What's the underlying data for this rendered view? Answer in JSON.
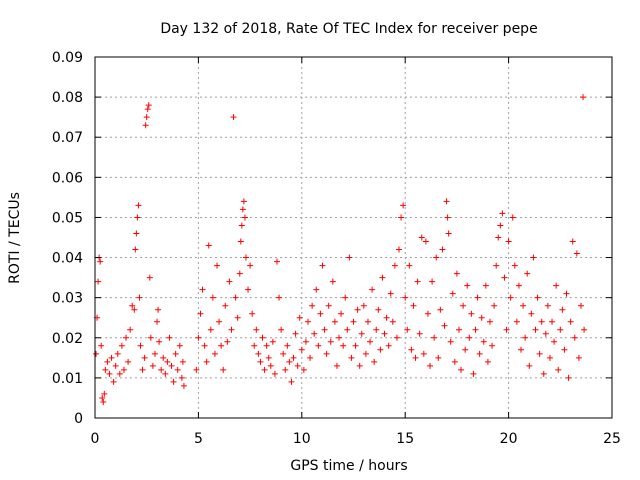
{
  "chart_data": {
    "type": "scatter",
    "title": "Day 132 of 2018, Rate Of TEC Index for receiver pepe",
    "xlabel": "GPS time / hours",
    "ylabel": "ROTI / TECUs",
    "xlim": [
      0,
      25
    ],
    "ylim": [
      0,
      0.09
    ],
    "xticks": [
      0,
      5,
      10,
      15,
      20,
      25
    ],
    "xtick_labels": [
      "0",
      "5",
      "10",
      "15",
      "20",
      "25"
    ],
    "yticks": [
      0,
      0.01,
      0.02,
      0.03,
      0.04,
      0.05,
      0.06,
      0.07,
      0.08,
      0.09
    ],
    "ytick_labels": [
      "0",
      "0.01",
      "0.02",
      "0.03",
      "0.04",
      "0.05",
      "0.06",
      "0.07",
      "0.08",
      "0.09"
    ],
    "grid": true,
    "marker": "+",
    "color": "#ff0000",
    "series": [
      {
        "name": "ROTI",
        "points": [
          [
            0.05,
            0.016
          ],
          [
            0.1,
            0.025
          ],
          [
            0.15,
            0.034
          ],
          [
            0.2,
            0.04
          ],
          [
            0.25,
            0.039
          ],
          [
            0.3,
            0.018
          ],
          [
            0.35,
            0.005
          ],
          [
            0.4,
            0.004
          ],
          [
            0.45,
            0.006
          ],
          [
            0.5,
            0.012
          ],
          [
            0.6,
            0.014
          ],
          [
            0.7,
            0.011
          ],
          [
            0.8,
            0.015
          ],
          [
            0.9,
            0.009
          ],
          [
            1.0,
            0.013
          ],
          [
            1.1,
            0.016
          ],
          [
            1.2,
            0.011
          ],
          [
            1.3,
            0.018
          ],
          [
            1.4,
            0.012
          ],
          [
            1.5,
            0.02
          ],
          [
            1.6,
            0.014
          ],
          [
            1.7,
            0.022
          ],
          [
            1.8,
            0.028
          ],
          [
            1.9,
            0.027
          ],
          [
            1.95,
            0.042
          ],
          [
            2.0,
            0.046
          ],
          [
            2.05,
            0.05
          ],
          [
            2.1,
            0.053
          ],
          [
            2.15,
            0.03
          ],
          [
            2.2,
            0.018
          ],
          [
            2.3,
            0.012
          ],
          [
            2.4,
            0.015
          ],
          [
            2.45,
            0.073
          ],
          [
            2.5,
            0.075
          ],
          [
            2.55,
            0.077
          ],
          [
            2.6,
            0.078
          ],
          [
            2.65,
            0.035
          ],
          [
            2.7,
            0.02
          ],
          [
            2.8,
            0.013
          ],
          [
            2.9,
            0.016
          ],
          [
            3.0,
            0.024
          ],
          [
            3.05,
            0.027
          ],
          [
            3.1,
            0.019
          ],
          [
            3.2,
            0.012
          ],
          [
            3.3,
            0.015
          ],
          [
            3.4,
            0.011
          ],
          [
            3.5,
            0.014
          ],
          [
            3.6,
            0.02
          ],
          [
            3.7,
            0.013
          ],
          [
            3.8,
            0.009
          ],
          [
            3.9,
            0.016
          ],
          [
            4.0,
            0.012
          ],
          [
            4.1,
            0.018
          ],
          [
            4.2,
            0.01
          ],
          [
            4.25,
            0.014
          ],
          [
            4.3,
            0.008
          ],
          [
            4.9,
            0.012
          ],
          [
            5.0,
            0.02
          ],
          [
            5.1,
            0.026
          ],
          [
            5.2,
            0.032
          ],
          [
            5.3,
            0.018
          ],
          [
            5.4,
            0.014
          ],
          [
            5.5,
            0.043
          ],
          [
            5.6,
            0.022
          ],
          [
            5.7,
            0.03
          ],
          [
            5.8,
            0.016
          ],
          [
            5.9,
            0.038
          ],
          [
            6.0,
            0.024
          ],
          [
            6.1,
            0.018
          ],
          [
            6.2,
            0.012
          ],
          [
            6.3,
            0.028
          ],
          [
            6.4,
            0.019
          ],
          [
            6.5,
            0.034
          ],
          [
            6.6,
            0.022
          ],
          [
            6.7,
            0.075
          ],
          [
            6.8,
            0.03
          ],
          [
            6.9,
            0.025
          ],
          [
            7.0,
            0.036
          ],
          [
            7.05,
            0.044
          ],
          [
            7.1,
            0.048
          ],
          [
            7.15,
            0.052
          ],
          [
            7.2,
            0.054
          ],
          [
            7.25,
            0.05
          ],
          [
            7.3,
            0.04
          ],
          [
            7.4,
            0.032
          ],
          [
            7.5,
            0.038
          ],
          [
            7.6,
            0.026
          ],
          [
            7.7,
            0.018
          ],
          [
            7.8,
            0.022
          ],
          [
            7.9,
            0.016
          ],
          [
            8.0,
            0.014
          ],
          [
            8.1,
            0.02
          ],
          [
            8.2,
            0.012
          ],
          [
            8.3,
            0.018
          ],
          [
            8.4,
            0.015
          ],
          [
            8.5,
            0.013
          ],
          [
            8.6,
            0.019
          ],
          [
            8.7,
            0.011
          ],
          [
            8.8,
            0.039
          ],
          [
            8.9,
            0.03
          ],
          [
            9.0,
            0.022
          ],
          [
            9.1,
            0.016
          ],
          [
            9.2,
            0.012
          ],
          [
            9.3,
            0.018
          ],
          [
            9.4,
            0.014
          ],
          [
            9.5,
            0.009
          ],
          [
            9.6,
            0.015
          ],
          [
            9.7,
            0.021
          ],
          [
            9.8,
            0.013
          ],
          [
            9.9,
            0.025
          ],
          [
            10.0,
            0.017
          ],
          [
            10.1,
            0.012
          ],
          [
            10.2,
            0.019
          ],
          [
            10.3,
            0.024
          ],
          [
            10.4,
            0.015
          ],
          [
            10.5,
            0.028
          ],
          [
            10.6,
            0.021
          ],
          [
            10.7,
            0.032
          ],
          [
            10.8,
            0.018
          ],
          [
            10.9,
            0.026
          ],
          [
            11.0,
            0.038
          ],
          [
            11.1,
            0.022
          ],
          [
            11.2,
            0.016
          ],
          [
            11.3,
            0.028
          ],
          [
            11.4,
            0.019
          ],
          [
            11.5,
            0.034
          ],
          [
            11.6,
            0.024
          ],
          [
            11.7,
            0.013
          ],
          [
            11.8,
            0.02
          ],
          [
            11.9,
            0.026
          ],
          [
            12.0,
            0.018
          ],
          [
            12.1,
            0.03
          ],
          [
            12.2,
            0.022
          ],
          [
            12.3,
            0.04
          ],
          [
            12.4,
            0.015
          ],
          [
            12.5,
            0.024
          ],
          [
            12.6,
            0.018
          ],
          [
            12.7,
            0.027
          ],
          [
            12.8,
            0.013
          ],
          [
            12.9,
            0.021
          ],
          [
            13.0,
            0.028
          ],
          [
            13.1,
            0.016
          ],
          [
            13.2,
            0.024
          ],
          [
            13.3,
            0.019
          ],
          [
            13.4,
            0.032
          ],
          [
            13.5,
            0.014
          ],
          [
            13.6,
            0.022
          ],
          [
            13.7,
            0.027
          ],
          [
            13.8,
            0.017
          ],
          [
            13.9,
            0.035
          ],
          [
            14.0,
            0.021
          ],
          [
            14.1,
            0.025
          ],
          [
            14.2,
            0.018
          ],
          [
            14.3,
            0.031
          ],
          [
            14.4,
            0.024
          ],
          [
            14.5,
            0.038
          ],
          [
            14.6,
            0.02
          ],
          [
            14.7,
            0.042
          ],
          [
            14.8,
            0.05
          ],
          [
            14.9,
            0.053
          ],
          [
            15.0,
            0.03
          ],
          [
            15.1,
            0.022
          ],
          [
            15.2,
            0.038
          ],
          [
            15.3,
            0.017
          ],
          [
            15.4,
            0.028
          ],
          [
            15.5,
            0.015
          ],
          [
            15.6,
            0.034
          ],
          [
            15.7,
            0.021
          ],
          [
            15.8,
            0.045
          ],
          [
            15.9,
            0.016
          ],
          [
            16.0,
            0.044
          ],
          [
            16.1,
            0.026
          ],
          [
            16.2,
            0.013
          ],
          [
            16.3,
            0.034
          ],
          [
            16.4,
            0.02
          ],
          [
            16.5,
            0.04
          ],
          [
            16.6,
            0.015
          ],
          [
            16.7,
            0.027
          ],
          [
            16.8,
            0.042
          ],
          [
            16.9,
            0.023
          ],
          [
            17.0,
            0.054
          ],
          [
            17.05,
            0.05
          ],
          [
            17.1,
            0.046
          ],
          [
            17.2,
            0.019
          ],
          [
            17.3,
            0.031
          ],
          [
            17.4,
            0.014
          ],
          [
            17.5,
            0.036
          ],
          [
            17.6,
            0.022
          ],
          [
            17.7,
            0.012
          ],
          [
            17.8,
            0.028
          ],
          [
            17.9,
            0.017
          ],
          [
            18.0,
            0.033
          ],
          [
            18.1,
            0.02
          ],
          [
            18.2,
            0.026
          ],
          [
            18.3,
            0.011
          ],
          [
            18.4,
            0.022
          ],
          [
            18.5,
            0.03
          ],
          [
            18.6,
            0.016
          ],
          [
            18.7,
            0.025
          ],
          [
            18.8,
            0.019
          ],
          [
            18.9,
            0.033
          ],
          [
            19.0,
            0.014
          ],
          [
            19.1,
            0.024
          ],
          [
            19.2,
            0.018
          ],
          [
            19.3,
            0.028
          ],
          [
            19.4,
            0.038
          ],
          [
            19.5,
            0.045
          ],
          [
            19.6,
            0.048
          ],
          [
            19.7,
            0.051
          ],
          [
            19.8,
            0.035
          ],
          [
            19.9,
            0.022
          ],
          [
            20.0,
            0.044
          ],
          [
            20.1,
            0.03
          ],
          [
            20.2,
            0.05
          ],
          [
            20.3,
            0.038
          ],
          [
            20.4,
            0.024
          ],
          [
            20.5,
            0.033
          ],
          [
            20.6,
            0.017
          ],
          [
            20.7,
            0.028
          ],
          [
            20.8,
            0.02
          ],
          [
            20.9,
            0.036
          ],
          [
            21.0,
            0.013
          ],
          [
            21.1,
            0.026
          ],
          [
            21.2,
            0.04
          ],
          [
            21.3,
            0.022
          ],
          [
            21.4,
            0.03
          ],
          [
            21.5,
            0.016
          ],
          [
            21.6,
            0.024
          ],
          [
            21.7,
            0.011
          ],
          [
            21.8,
            0.021
          ],
          [
            21.9,
            0.028
          ],
          [
            22.0,
            0.015
          ],
          [
            22.1,
            0.024
          ],
          [
            22.2,
            0.019
          ],
          [
            22.3,
            0.033
          ],
          [
            22.4,
            0.012
          ],
          [
            22.5,
            0.022
          ],
          [
            22.6,
            0.027
          ],
          [
            22.7,
            0.017
          ],
          [
            22.8,
            0.031
          ],
          [
            22.9,
            0.01
          ],
          [
            23.0,
            0.024
          ],
          [
            23.1,
            0.044
          ],
          [
            23.2,
            0.02
          ],
          [
            23.3,
            0.041
          ],
          [
            23.4,
            0.015
          ],
          [
            23.5,
            0.028
          ],
          [
            23.6,
            0.08
          ],
          [
            23.65,
            0.022
          ]
        ]
      }
    ]
  }
}
